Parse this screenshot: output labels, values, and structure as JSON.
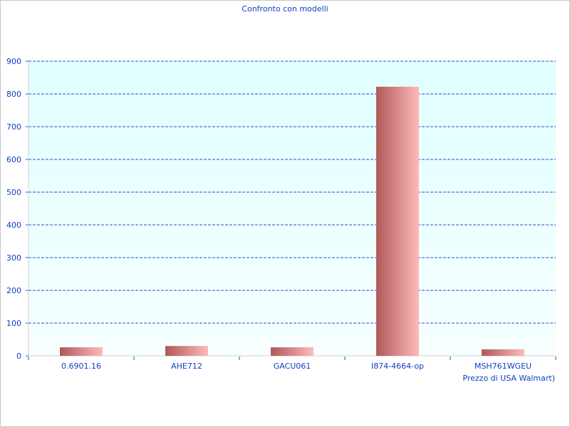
{
  "chart_data": {
    "type": "bar",
    "title": "Confronto con modelli",
    "xlabel": "Prezzo di USA Walmart)",
    "ylabel": "",
    "categories": [
      "0.6901.16",
      "AHE712",
      "GACU061",
      "I874-4664-op",
      "MSH761WGEU"
    ],
    "values": [
      26,
      30,
      26,
      822,
      20
    ],
    "ylim": [
      0,
      900
    ],
    "yticks": [
      0,
      100,
      200,
      300,
      400,
      500,
      600,
      700,
      800,
      900
    ],
    "grid": true,
    "legend": "none",
    "colors": {
      "bar_dark": "#b05858",
      "bar_light": "#ffbaba",
      "text": "#1040c0",
      "grid": "#2050d0",
      "plot_bg_top": "#e0ffff",
      "plot_bg_bottom": "#f8ffff"
    }
  }
}
